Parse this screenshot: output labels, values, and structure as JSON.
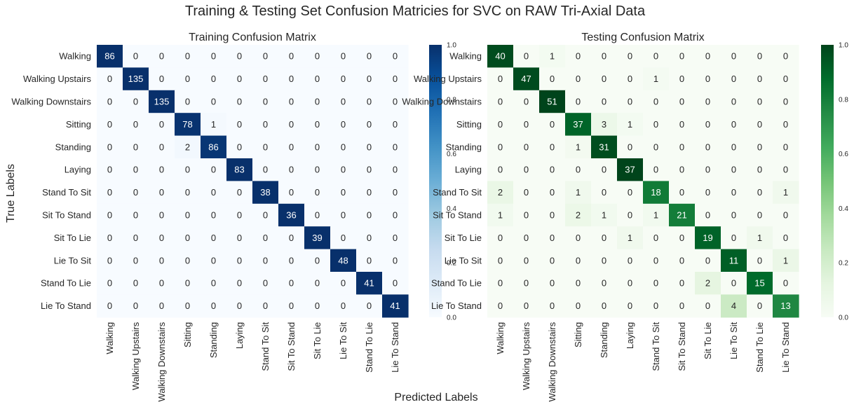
{
  "figure": {
    "suptitle": "Training & Testing Set Confusion Matricies for SVC on RAW Tri-Axial Data",
    "ylabel": "True Labels",
    "xlabel": "Predicted Labels"
  },
  "chart_data": [
    {
      "type": "heatmap",
      "title": "Training Confusion Matrix",
      "colormap": "Blues",
      "colorbar_ticks": [
        "0.0",
        "0.2",
        "0.4",
        "0.6",
        "0.8",
        "1.0"
      ],
      "colorbar_range": [
        0,
        1
      ],
      "row_labels": [
        "Walking",
        "Walking Upstairs",
        "Walking Downstairs",
        "Sitting",
        "Standing",
        "Laying",
        "Stand To Sit",
        "Sit To Stand",
        "Sit To Lie",
        "Lie To Sit",
        "Stand To Lie",
        "Lie To Stand"
      ],
      "col_labels": [
        "Walking",
        "Walking Upstairs",
        "Walking Downstairs",
        "Sitting",
        "Standing",
        "Laying",
        "Stand To Sit",
        "Sit To Stand",
        "Sit To Lie",
        "Lie To Sit",
        "Stand To Lie",
        "Lie To Stand"
      ],
      "values": [
        [
          86,
          0,
          0,
          0,
          0,
          0,
          0,
          0,
          0,
          0,
          0,
          0
        ],
        [
          0,
          135,
          0,
          0,
          0,
          0,
          0,
          0,
          0,
          0,
          0,
          0
        ],
        [
          0,
          0,
          135,
          0,
          0,
          0,
          0,
          0,
          0,
          0,
          0,
          0
        ],
        [
          0,
          0,
          0,
          78,
          1,
          0,
          0,
          0,
          0,
          0,
          0,
          0
        ],
        [
          0,
          0,
          0,
          2,
          86,
          0,
          0,
          0,
          0,
          0,
          0,
          0
        ],
        [
          0,
          0,
          0,
          0,
          0,
          83,
          0,
          0,
          0,
          0,
          0,
          0
        ],
        [
          0,
          0,
          0,
          0,
          0,
          0,
          38,
          0,
          0,
          0,
          0,
          0
        ],
        [
          0,
          0,
          0,
          0,
          0,
          0,
          0,
          36,
          0,
          0,
          0,
          0
        ],
        [
          0,
          0,
          0,
          0,
          0,
          0,
          0,
          0,
          39,
          0,
          0,
          0
        ],
        [
          0,
          0,
          0,
          0,
          0,
          0,
          0,
          0,
          0,
          48,
          0,
          0
        ],
        [
          0,
          0,
          0,
          0,
          0,
          0,
          0,
          0,
          0,
          0,
          41,
          0
        ],
        [
          0,
          0,
          0,
          0,
          0,
          0,
          0,
          0,
          0,
          0,
          0,
          41
        ]
      ]
    },
    {
      "type": "heatmap",
      "title": "Testing Confusion Matrix",
      "colormap": "Greens",
      "colorbar_ticks": [
        "0.0",
        "0.2",
        "0.4",
        "0.6",
        "0.8",
        "1.0"
      ],
      "colorbar_range": [
        0,
        1
      ],
      "row_labels": [
        "Walking",
        "Walking Upstairs",
        "Walking Downstairs",
        "Sitting",
        "Standing",
        "Laying",
        "Stand To Sit",
        "Sit To Stand",
        "Sit To Lie",
        "Lie To Sit",
        "Stand To Lie",
        "Lie To Stand"
      ],
      "col_labels": [
        "Walking",
        "Walking Upstairs",
        "Walking Downstairs",
        "Sitting",
        "Standing",
        "Laying",
        "Stand To Sit",
        "Sit To Stand",
        "Sit To Lie",
        "Lie To Sit",
        "Stand To Lie",
        "Lie To Stand"
      ],
      "values": [
        [
          40,
          0,
          1,
          0,
          0,
          0,
          0,
          0,
          0,
          0,
          0,
          0
        ],
        [
          0,
          47,
          0,
          0,
          0,
          0,
          1,
          0,
          0,
          0,
          0,
          0
        ],
        [
          0,
          0,
          51,
          0,
          0,
          0,
          0,
          0,
          0,
          0,
          0,
          0
        ],
        [
          0,
          0,
          0,
          37,
          3,
          1,
          0,
          0,
          0,
          0,
          0,
          0
        ],
        [
          0,
          0,
          0,
          1,
          31,
          0,
          0,
          0,
          0,
          0,
          0,
          0
        ],
        [
          0,
          0,
          0,
          0,
          0,
          37,
          0,
          0,
          0,
          0,
          0,
          0
        ],
        [
          2,
          0,
          0,
          1,
          0,
          0,
          18,
          0,
          0,
          0,
          0,
          1
        ],
        [
          1,
          0,
          0,
          2,
          1,
          0,
          1,
          21,
          0,
          0,
          0,
          0
        ],
        [
          0,
          0,
          0,
          0,
          0,
          1,
          0,
          0,
          19,
          0,
          1,
          0
        ],
        [
          0,
          0,
          0,
          0,
          0,
          0,
          0,
          0,
          0,
          11,
          0,
          1
        ],
        [
          0,
          0,
          0,
          0,
          0,
          0,
          0,
          0,
          2,
          0,
          15,
          0
        ],
        [
          0,
          0,
          0,
          0,
          0,
          0,
          0,
          0,
          0,
          4,
          0,
          13
        ]
      ]
    }
  ]
}
